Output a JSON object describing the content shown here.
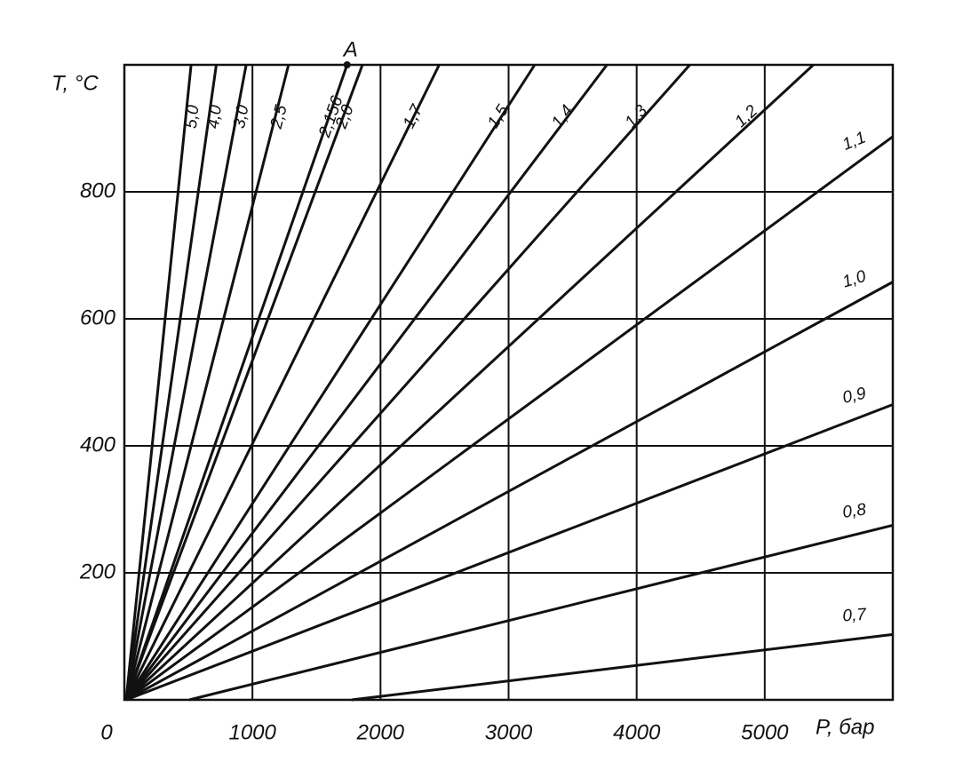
{
  "chart_data": {
    "type": "line",
    "xlabel": "P, бар",
    "ylabel": "T, °C",
    "xlim": [
      0,
      6000
    ],
    "ylim": [
      0,
      1000
    ],
    "xticks": [
      0,
      1000,
      2000,
      3000,
      4000,
      5000
    ],
    "yticks": [
      200,
      400,
      600,
      800
    ],
    "grid": true,
    "color": "#111111",
    "series": [
      {
        "name": "5,0",
        "x": [
          14,
          521
        ],
        "values": [
          0,
          1000
        ]
      },
      {
        "name": "4,0",
        "x": [
          14,
          718
        ],
        "values": [
          0,
          1000
        ]
      },
      {
        "name": "3,0",
        "x": [
          14,
          951
        ],
        "values": [
          0,
          1000
        ]
      },
      {
        "name": "2,5",
        "x": [
          14,
          1282
        ],
        "values": [
          0,
          1000
        ]
      },
      {
        "name": "2,156",
        "x": [
          14,
          1739
        ],
        "values": [
          0,
          1000
        ]
      },
      {
        "name": "2,0",
        "x": [
          14,
          1859
        ],
        "values": [
          0,
          1000
        ]
      },
      {
        "name": "1,7",
        "x": [
          14,
          2458
        ],
        "values": [
          0,
          1000
        ]
      },
      {
        "name": "1,5",
        "x": [
          14,
          3204
        ],
        "values": [
          0,
          1000
        ]
      },
      {
        "name": "1,4",
        "x": [
          14,
          3768
        ],
        "values": [
          0,
          1000
        ]
      },
      {
        "name": "1,3",
        "x": [
          14,
          4415
        ],
        "values": [
          0,
          1000
        ]
      },
      {
        "name": "1,2",
        "x": [
          14,
          5380
        ],
        "values": [
          0,
          1000
        ]
      },
      {
        "name": "1,1",
        "x": [
          14,
          6000
        ],
        "values": [
          0,
          887
        ]
      },
      {
        "name": "1,0",
        "x": [
          14,
          6000
        ],
        "values": [
          0,
          658
        ]
      },
      {
        "name": "0,9",
        "x": [
          14,
          6000
        ],
        "values": [
          0,
          465
        ]
      },
      {
        "name": "0,8",
        "x": [
          507,
          6000
        ],
        "values": [
          0,
          275
        ]
      },
      {
        "name": "0,7",
        "x": [
          1775,
          6000
        ],
        "values": [
          0,
          103
        ]
      }
    ],
    "annotations": [
      {
        "text": "A",
        "x": 1739,
        "y": 1000
      }
    ]
  }
}
